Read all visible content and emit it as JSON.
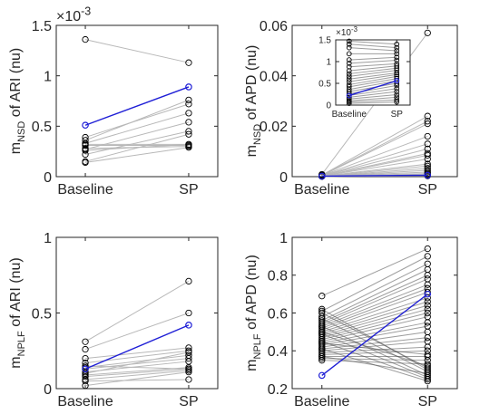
{
  "colors": {
    "paired": "#b8b8b8",
    "paired_dense": "#4d4d4d",
    "highlight": "#1f1fd6",
    "marker": "#000000",
    "axis": "#262626"
  },
  "chart_data": [
    {
      "type": "line",
      "id": "ari-nsd",
      "categories": [
        "Baseline",
        "SP"
      ],
      "ylabel_main": "m",
      "ylabel_sub": "NSD",
      "ylabel_tail": " of ARI (nu)",
      "ylim": [
        0,
        0.0015
      ],
      "yticks": [
        "0",
        "0.5",
        "1",
        "1.5"
      ],
      "ytick_values": [
        0,
        0.0005,
        0.001,
        0.0015
      ],
      "exponent_base": "×10",
      "exponent_power": "-3",
      "pairs": [
        [
          0.00136,
          0.00113
        ],
        [
          0.00036,
          0.00076
        ],
        [
          0.00039,
          0.00072
        ],
        [
          0.00033,
          0.00063
        ],
        [
          0.00027,
          0.00054
        ],
        [
          0.00022,
          0.00045
        ],
        [
          0.00015,
          0.00042
        ],
        [
          0.00031,
          0.00031
        ],
        [
          0.00028,
          0.0003
        ],
        [
          0.00026,
          0.00032
        ],
        [
          0.00032,
          0.00032
        ],
        [
          0.00014,
          0.00029
        ]
      ],
      "highlight": [
        0.00051,
        0.00089
      ]
    },
    {
      "type": "line",
      "id": "apd-nsd",
      "categories": [
        "Baseline",
        "SP"
      ],
      "ylabel_main": "m",
      "ylabel_sub": "NSD",
      "ylabel_tail": " of APD (nu)",
      "ylim": [
        0,
        0.06
      ],
      "yticks": [
        "0",
        "0.02",
        "0.04",
        "0.06"
      ],
      "ytick_values": [
        0,
        0.02,
        0.04,
        0.06
      ],
      "pairs": [
        [
          0.0009,
          0.057
        ],
        [
          0.0006,
          0.024
        ],
        [
          0.0005,
          0.022
        ],
        [
          0.0004,
          0.021
        ],
        [
          0.0004,
          0.016
        ],
        [
          0.0003,
          0.013
        ],
        [
          0.0003,
          0.011
        ],
        [
          0.0002,
          0.0092
        ],
        [
          0.0002,
          0.0085
        ],
        [
          0.0002,
          0.007
        ],
        [
          0.0002,
          0.005
        ],
        [
          0.0001,
          0.0042
        ],
        [
          0.0001,
          0.0033
        ],
        [
          0.0001,
          0.0025
        ],
        [
          0.0001,
          0.0018
        ],
        [
          0.0001,
          0.0012
        ],
        [
          0.0002,
          0.0008
        ],
        [
          0.0001,
          0.0006
        ],
        [
          0.0001,
          0.0005
        ],
        [
          0.0001,
          0.0003
        ]
      ],
      "highlight": [
        0.0002,
        0.00055
      ],
      "inset": {
        "categories": [
          "Baseline",
          "SP"
        ],
        "ylim": [
          0,
          0.0015
        ],
        "yticks": [
          "0",
          "0.5",
          "1",
          "1.5"
        ],
        "ytick_values": [
          0,
          0.0005,
          0.001,
          0.0015
        ],
        "exponent_base": "×10",
        "exponent_power": "-3",
        "pairs": [
          [
            0.00147,
            0.0014
          ],
          [
            0.0014,
            0.00132
          ],
          [
            0.00132,
            0.00125
          ],
          [
            0.00118,
            0.00118
          ],
          [
            0.00104,
            0.0011
          ],
          [
            0.00096,
            0.00103
          ],
          [
            0.00088,
            0.00095
          ],
          [
            0.00079,
            0.0009
          ],
          [
            0.00072,
            0.00085
          ],
          [
            0.00066,
            0.0008
          ],
          [
            0.0006,
            0.00074
          ],
          [
            0.00054,
            0.0007
          ],
          [
            0.00047,
            0.00066
          ],
          [
            0.00042,
            0.00061
          ],
          [
            0.00036,
            0.00056
          ],
          [
            0.00031,
            0.0005
          ],
          [
            0.00026,
            0.00045
          ],
          [
            0.00022,
            0.00038
          ],
          [
            0.00018,
            0.00031
          ],
          [
            0.00014,
            0.00024
          ],
          [
            0.0001,
            0.00018
          ],
          [
            7e-05,
            0.00012
          ],
          [
            4e-05,
            7e-05
          ]
        ],
        "highlight": [
          0.00022,
          0.00056
        ]
      }
    },
    {
      "type": "line",
      "id": "ari-nplf",
      "categories": [
        "Baseline",
        "SP"
      ],
      "ylabel_main": "m",
      "ylabel_sub": "NPLF",
      "ylabel_tail": " of ARI (nu)",
      "ylim": [
        0,
        1
      ],
      "yticks": [
        "0",
        "0.5",
        "1"
      ],
      "ytick_values": [
        0,
        0.5,
        1
      ],
      "pairs": [
        [
          0.31,
          0.71
        ],
        [
          0.26,
          0.5
        ],
        [
          0.2,
          0.27
        ],
        [
          0.17,
          0.25
        ],
        [
          0.14,
          0.22
        ],
        [
          0.13,
          0.2
        ],
        [
          0.11,
          0.18
        ],
        [
          0.09,
          0.14
        ],
        [
          0.08,
          0.13
        ],
        [
          0.06,
          0.12
        ],
        [
          0.05,
          0.06
        ],
        [
          0.02,
          0.11
        ],
        [
          0.1,
          0.24
        ],
        [
          0.15,
          0.13
        ]
      ],
      "highlight": [
        0.13,
        0.42
      ]
    },
    {
      "type": "line",
      "id": "apd-nplf",
      "categories": [
        "Baseline",
        "SP"
      ],
      "ylabel_main": "m",
      "ylabel_sub": "NPLF",
      "ylabel_tail": " of APD (nu)",
      "ylim": [
        0.2,
        1
      ],
      "yticks": [
        "0.2",
        "0.4",
        "0.6",
        "0.8",
        "1"
      ],
      "ytick_values": [
        0.2,
        0.4,
        0.6,
        0.8,
        1
      ],
      "pairs": [
        [
          0.69,
          0.94
        ],
        [
          0.61,
          0.9
        ],
        [
          0.58,
          0.86
        ],
        [
          0.56,
          0.83
        ],
        [
          0.55,
          0.8
        ],
        [
          0.54,
          0.78
        ],
        [
          0.53,
          0.75
        ],
        [
          0.52,
          0.73
        ],
        [
          0.51,
          0.71
        ],
        [
          0.5,
          0.68
        ],
        [
          0.49,
          0.66
        ],
        [
          0.48,
          0.64
        ],
        [
          0.47,
          0.62
        ],
        [
          0.46,
          0.6
        ],
        [
          0.45,
          0.58
        ],
        [
          0.44,
          0.55
        ],
        [
          0.43,
          0.53
        ],
        [
          0.42,
          0.5
        ],
        [
          0.41,
          0.47
        ],
        [
          0.4,
          0.45
        ],
        [
          0.39,
          0.42
        ],
        [
          0.38,
          0.4
        ],
        [
          0.37,
          0.37
        ],
        [
          0.36,
          0.35
        ],
        [
          0.35,
          0.33
        ],
        [
          0.6,
          0.31
        ],
        [
          0.57,
          0.29
        ],
        [
          0.53,
          0.27
        ],
        [
          0.49,
          0.26
        ],
        [
          0.45,
          0.25
        ],
        [
          0.41,
          0.24
        ],
        [
          0.37,
          0.28
        ],
        [
          0.62,
          0.3
        ],
        [
          0.44,
          0.38
        ],
        [
          0.5,
          0.32
        ]
      ],
      "highlight": [
        0.27,
        0.7
      ]
    }
  ]
}
